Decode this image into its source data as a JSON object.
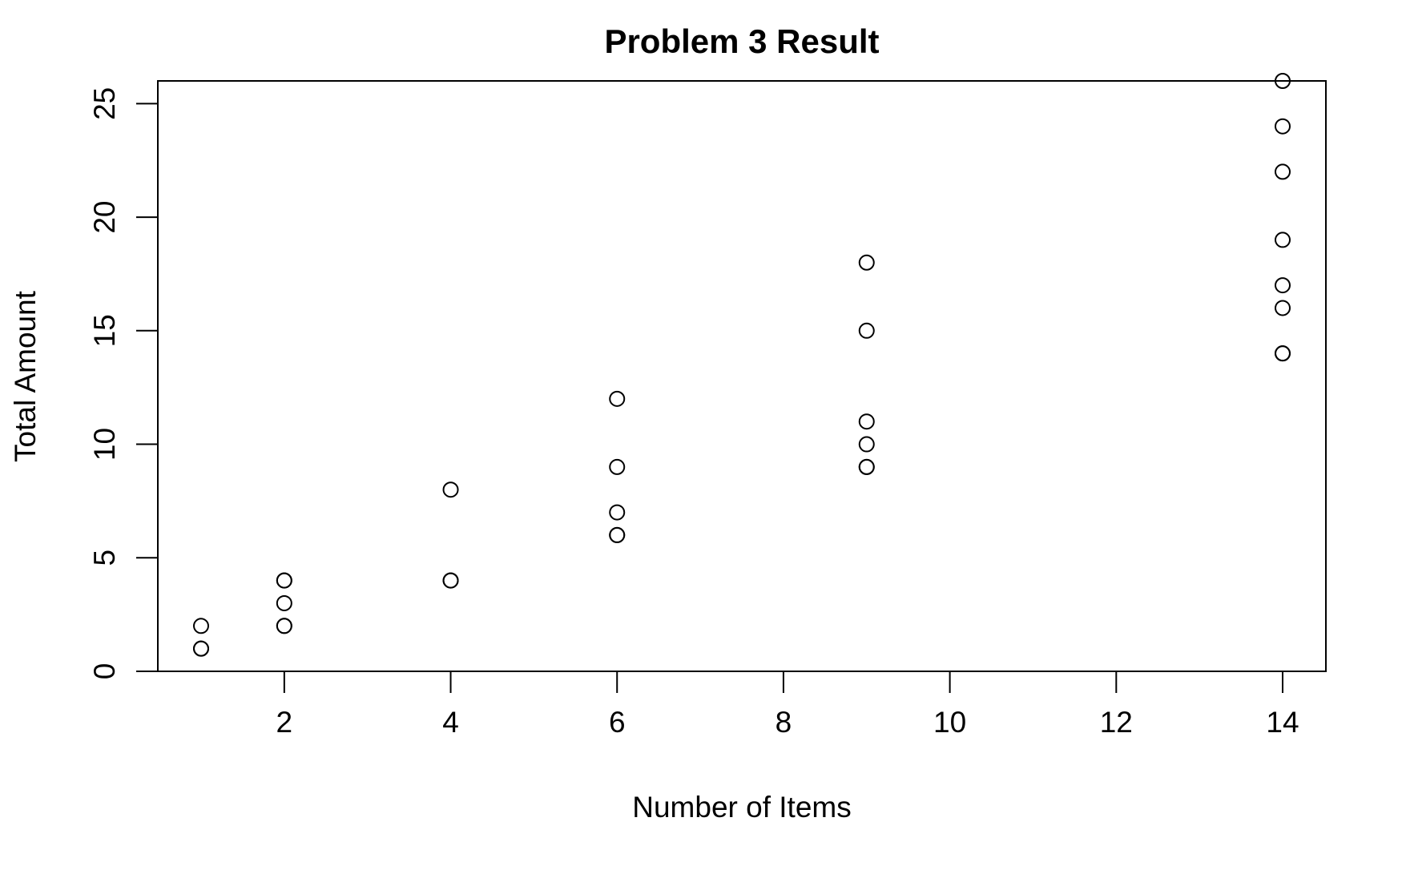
{
  "chart_data": {
    "type": "scatter",
    "title": "Problem 3 Result",
    "xlabel": "Number of Items",
    "ylabel": "Total Amount",
    "xlim": [
      0.48,
      14.52
    ],
    "ylim": [
      0,
      26.0
    ],
    "xticks": [
      2,
      4,
      6,
      8,
      10,
      12,
      14
    ],
    "yticks": [
      0,
      5,
      10,
      15,
      20,
      25
    ],
    "grid": false,
    "legend": "none",
    "marker": "open-circle",
    "colors": {
      "marker": "#000000",
      "axis": "#000000",
      "background": "#ffffff"
    },
    "points": [
      {
        "x": 1,
        "y": 2
      },
      {
        "x": 1,
        "y": 1
      },
      {
        "x": 1,
        "y": 1
      },
      {
        "x": 2,
        "y": 4
      },
      {
        "x": 2,
        "y": 4
      },
      {
        "x": 2,
        "y": 3
      },
      {
        "x": 2,
        "y": 2
      },
      {
        "x": 2,
        "y": 2
      },
      {
        "x": 4,
        "y": 8
      },
      {
        "x": 4,
        "y": 4
      },
      {
        "x": 4,
        "y": 4
      },
      {
        "x": 6,
        "y": 12
      },
      {
        "x": 6,
        "y": 9
      },
      {
        "x": 6,
        "y": 7
      },
      {
        "x": 6,
        "y": 6
      },
      {
        "x": 6,
        "y": 6
      },
      {
        "x": 9,
        "y": 18
      },
      {
        "x": 9,
        "y": 15
      },
      {
        "x": 9,
        "y": 11
      },
      {
        "x": 9,
        "y": 10
      },
      {
        "x": 9,
        "y": 9
      },
      {
        "x": 9,
        "y": 9
      },
      {
        "x": 14,
        "y": 26
      },
      {
        "x": 14,
        "y": 24
      },
      {
        "x": 14,
        "y": 22
      },
      {
        "x": 14,
        "y": 19
      },
      {
        "x": 14,
        "y": 17
      },
      {
        "x": 14,
        "y": 16
      },
      {
        "x": 14,
        "y": 14
      },
      {
        "x": 14,
        "y": 14
      }
    ]
  }
}
